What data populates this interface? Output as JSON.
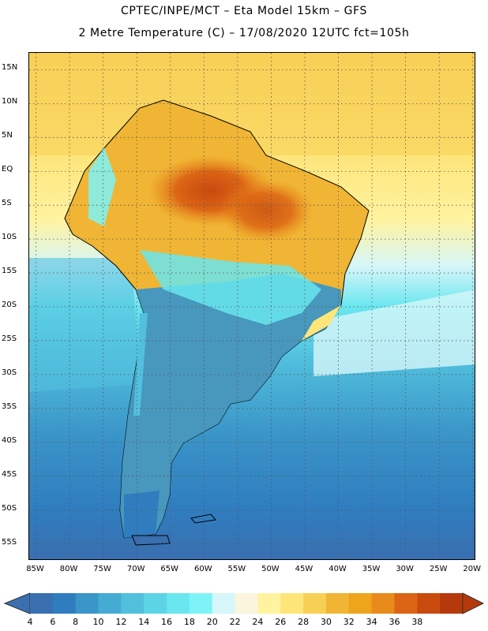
{
  "header": {
    "title_line1": "CPTEC/INPE/MCT –  Eta Model 15km – GFS",
    "title_line2": "2 Metre Temperature (C) – 17/08/2020 12UTC fct=105h"
  },
  "map": {
    "lat_labels": [
      "15N",
      "10N",
      "5N",
      "EQ",
      "5S",
      "10S",
      "15S",
      "20S",
      "25S",
      "30S",
      "35S",
      "40S",
      "45S",
      "50S",
      "55S"
    ],
    "lon_labels": [
      "85W",
      "80W",
      "75W",
      "70W",
      "65W",
      "60W",
      "55W",
      "50W",
      "45W",
      "40W",
      "35W",
      "30W",
      "25W",
      "20W"
    ],
    "lat_range": [
      17.5,
      -57.5
    ],
    "lon_range": [
      -86,
      -19.5
    ],
    "regions": [
      {
        "name": "north-ocean-band",
        "temp_c": 28
      },
      {
        "name": "amazon-hotspot",
        "temp_c": 36
      },
      {
        "name": "central-brazil",
        "temp_c": 30
      },
      {
        "name": "andes-highlands",
        "temp_c": 14
      },
      {
        "name": "south-atlantic",
        "temp_c": 16
      },
      {
        "name": "patagonia",
        "temp_c": 8
      }
    ]
  },
  "legend": {
    "tick_labels": [
      "4",
      "6",
      "8",
      "10",
      "12",
      "14",
      "16",
      "18",
      "20",
      "22",
      "24",
      "26",
      "28",
      "30",
      "32",
      "34",
      "36",
      "38"
    ],
    "colors": [
      "#3a6fb0",
      "#2f7dbf",
      "#3a95c8",
      "#45abd3",
      "#52c0dd",
      "#5dd4e6",
      "#69e6ef",
      "#7df3f7",
      "#d6f6f9",
      "#fbf5dd",
      "#fff3a0",
      "#fde57a",
      "#f7cf55",
      "#f0b534",
      "#eea51c",
      "#e88a1c",
      "#dc6515",
      "#c84a0f",
      "#b6390b"
    ],
    "left_arrow_color": "#3a6fb0",
    "right_arrow_color": "#b6390b"
  }
}
